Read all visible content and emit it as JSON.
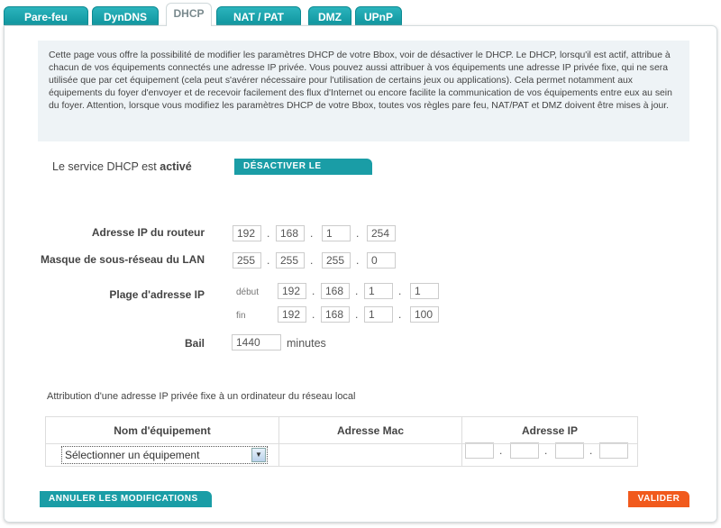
{
  "tabs": [
    "Pare-feu",
    "DynDNS",
    "DHCP",
    "NAT / PAT",
    "DMZ",
    "UPnP"
  ],
  "active_tab": "DHCP",
  "info_text": "Cette page vous offre la possibilité de modifier les paramètres DHCP de votre Bbox, voir de désactiver le DHCP. Le DHCP, lorsqu'il est actif, attribue à chacun de vos équipements connectés une adresse IP privée. Vous pouvez aussi attribuer à vos équipements une adresse IP privée fixe, qui ne sera utilisée que par cet équipement (cela peut s'avérer nécessaire pour l'utilisation de certains jeux ou applications). Cela permet notamment aux équipements du foyer d'envoyer et de recevoir facilement des flux d'Internet ou encore facilite la communication de vos équipements entre eux au sein du foyer. Attention, lorsque vous modifiez les paramètres DHCP de votre Bbox, toutes vos règles pare feu, NAT/PAT et DMZ doivent être mises à jour.",
  "status": {
    "prefix": "Le service DHCP est ",
    "state": "activé",
    "button": "DÉSACTIVER LE SERVICE"
  },
  "fields": {
    "router_label": "Adresse IP du routeur",
    "router": [
      "192",
      "168",
      "1",
      "254"
    ],
    "mask_label": "Masque de sous-réseau du LAN",
    "mask": [
      "255",
      "255",
      "255",
      "0"
    ],
    "range_label": "Plage d'adresse IP",
    "start_label": "début",
    "start": [
      "192",
      "168",
      "1",
      "1"
    ],
    "end_label": "fin",
    "end": [
      "192",
      "168",
      "1",
      "100"
    ],
    "lease_label": "Bail",
    "lease": "1440",
    "lease_unit": "minutes"
  },
  "static": {
    "title": "Attribution d'une adresse IP privée fixe à un ordinateur du réseau local",
    "headers": [
      "Nom d'équipement",
      "Adresse Mac",
      "Adresse IP"
    ],
    "select_value": "Sélectionner un équipement"
  },
  "buttons": {
    "cancel": "ANNULER LES MODIFICATIONS",
    "submit": "VALIDER"
  },
  "colors": {
    "teal": "#1a9da6",
    "orange": "#f15a1d"
  }
}
